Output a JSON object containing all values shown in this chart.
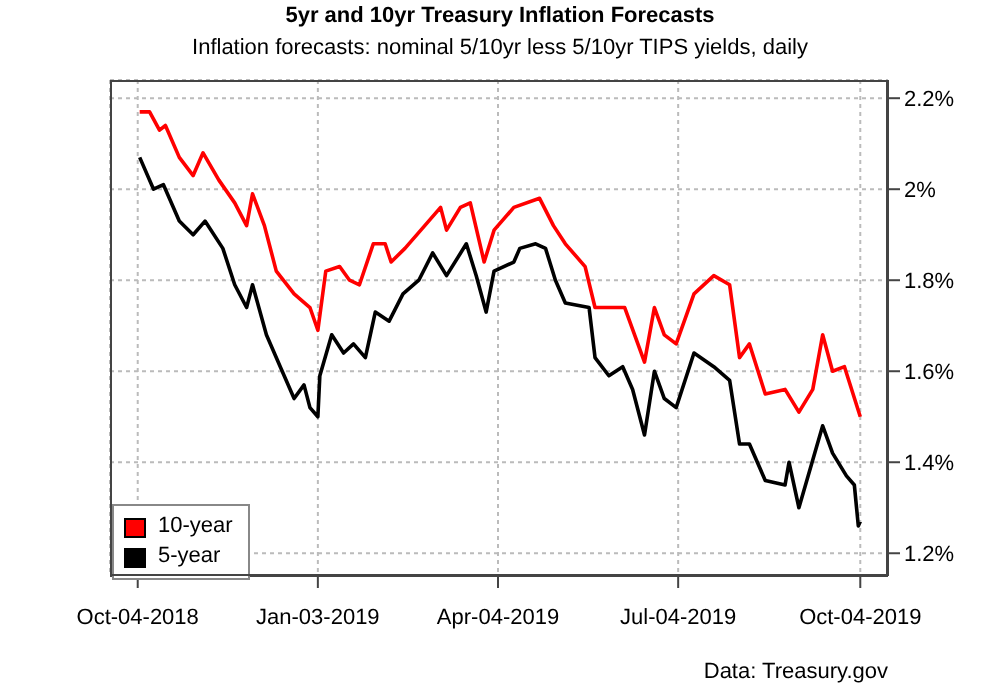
{
  "chart_data": {
    "type": "line",
    "title": "5yr and 10yr Treasury Inflation Forecasts",
    "subtitle": "Inflation forecasts: nominal 5/10yr less 5/10yr TIPS yields, daily",
    "annotations": [
      "Data: Treasury.gov"
    ],
    "xlim": [
      "2018-09-20",
      "2019-10-18"
    ],
    "xticks": [
      {
        "value": "2018-10-04",
        "label": "Oct-04-2018"
      },
      {
        "value": "2019-01-03",
        "label": "Jan-03-2019"
      },
      {
        "value": "2019-04-04",
        "label": "Apr-04-2019"
      },
      {
        "value": "2019-07-04",
        "label": "Jul-04-2019"
      },
      {
        "value": "2019-10-04",
        "label": "Oct-04-2019"
      }
    ],
    "ylim": [
      1.15,
      2.24
    ],
    "yticks": [
      {
        "value": 1.2,
        "label": "1.2%"
      },
      {
        "value": 1.4,
        "label": "1.4%"
      },
      {
        "value": 1.6,
        "label": "1.6%"
      },
      {
        "value": 1.8,
        "label": "1.8%"
      },
      {
        "value": 2,
        "label": "2%"
      },
      {
        "value": 2.2,
        "label": "2.2%"
      }
    ],
    "grid": true,
    "legend": "bottom left",
    "marker": "none",
    "line_style": "solid",
    "series": [
      {
        "name": "10-year",
        "color": "#ff0000",
        "x": [
          "2018-10-05",
          "2018-10-10",
          "2018-10-15",
          "2018-10-18",
          "2018-10-25",
          "2018-11-01",
          "2018-11-06",
          "2018-11-14",
          "2018-11-22",
          "2018-11-28",
          "2018-12-01",
          "2018-12-07",
          "2018-12-13",
          "2018-12-22",
          "2018-12-30",
          "2019-01-03",
          "2019-01-07",
          "2019-01-14",
          "2019-01-19",
          "2019-01-24",
          "2019-01-31",
          "2019-02-06",
          "2019-02-09",
          "2019-02-16",
          "2019-02-26",
          "2019-03-06",
          "2019-03-09",
          "2019-03-16",
          "2019-03-21",
          "2019-03-28",
          "2019-04-02",
          "2019-04-12",
          "2019-04-25",
          "2019-05-02",
          "2019-05-08",
          "2019-05-18",
          "2019-05-23",
          "2019-06-07",
          "2019-06-17",
          "2019-06-22",
          "2019-06-27",
          "2019-07-03",
          "2019-07-12",
          "2019-07-22",
          "2019-07-30",
          "2019-08-04",
          "2019-08-09",
          "2019-08-17",
          "2019-08-27",
          "2019-09-03",
          "2019-09-10",
          "2019-09-15",
          "2019-09-20",
          "2019-09-26",
          "2019-10-04"
        ],
        "values": [
          2.17,
          2.17,
          2.13,
          2.14,
          2.07,
          2.03,
          2.08,
          2.02,
          1.97,
          1.92,
          1.99,
          1.92,
          1.82,
          1.77,
          1.74,
          1.69,
          1.82,
          1.83,
          1.8,
          1.79,
          1.88,
          1.88,
          1.84,
          1.87,
          1.92,
          1.96,
          1.91,
          1.96,
          1.97,
          1.84,
          1.91,
          1.96,
          1.98,
          1.92,
          1.88,
          1.83,
          1.74,
          1.74,
          1.62,
          1.74,
          1.68,
          1.66,
          1.77,
          1.81,
          1.79,
          1.63,
          1.66,
          1.55,
          1.56,
          1.51,
          1.56,
          1.68,
          1.6,
          1.61,
          1.5
        ]
      },
      {
        "name": "5-year",
        "color": "#000000",
        "x": [
          "2018-10-05",
          "2018-10-12",
          "2018-10-17",
          "2018-10-25",
          "2018-11-01",
          "2018-11-07",
          "2018-11-16",
          "2018-11-22",
          "2018-11-28",
          "2018-12-01",
          "2018-12-08",
          "2018-12-15",
          "2018-12-22",
          "2018-12-27",
          "2018-12-30",
          "2019-01-03",
          "2019-01-04",
          "2019-01-10",
          "2019-01-16",
          "2019-01-21",
          "2019-01-27",
          "2019-02-01",
          "2019-02-08",
          "2019-02-15",
          "2019-02-23",
          "2019-03-02",
          "2019-03-09",
          "2019-03-19",
          "2019-03-24",
          "2019-03-29",
          "2019-04-02",
          "2019-04-12",
          "2019-04-15",
          "2019-04-23",
          "2019-04-28",
          "2019-05-03",
          "2019-05-08",
          "2019-05-20",
          "2019-05-23",
          "2019-05-30",
          "2019-06-06",
          "2019-06-11",
          "2019-06-17",
          "2019-06-22",
          "2019-06-27",
          "2019-07-03",
          "2019-07-12",
          "2019-07-22",
          "2019-07-30",
          "2019-08-04",
          "2019-08-09",
          "2019-08-17",
          "2019-08-27",
          "2019-08-29",
          "2019-09-03",
          "2019-09-15",
          "2019-09-20",
          "2019-09-27",
          "2019-10-01",
          "2019-10-03",
          "2019-10-04"
        ],
        "values": [
          2.07,
          2.0,
          2.01,
          1.93,
          1.9,
          1.93,
          1.87,
          1.79,
          1.74,
          1.79,
          1.68,
          1.61,
          1.54,
          1.57,
          1.52,
          1.5,
          1.59,
          1.68,
          1.64,
          1.66,
          1.63,
          1.73,
          1.71,
          1.77,
          1.8,
          1.86,
          1.81,
          1.88,
          1.81,
          1.73,
          1.82,
          1.84,
          1.87,
          1.88,
          1.87,
          1.8,
          1.75,
          1.74,
          1.63,
          1.59,
          1.61,
          1.56,
          1.46,
          1.6,
          1.54,
          1.52,
          1.64,
          1.61,
          1.58,
          1.44,
          1.44,
          1.36,
          1.35,
          1.4,
          1.3,
          1.48,
          1.42,
          1.37,
          1.35,
          1.26,
          1.27
        ]
      }
    ]
  }
}
